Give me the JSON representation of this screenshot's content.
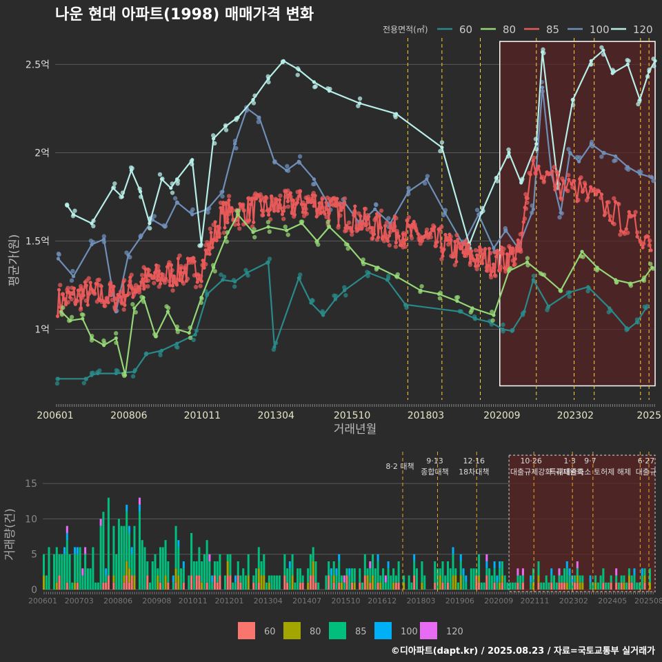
{
  "title": "나운 현대 아파트(1998) 매매가격 변화",
  "footer": "©디아파트(dapt.kr) / 2025.08.23 / 자료=국토교통부 실거래가",
  "colors": {
    "background": "#2b2b2b",
    "grid": "#5a5a5a",
    "s60_line": "#2a8a8a",
    "s80_line": "#95d676",
    "s85_line": "#e85a5a",
    "s100_line": "#6f8fb8",
    "s120_line": "#b8eee8",
    "b60": "#f8766d",
    "b80": "#a3a500",
    "b85": "#00bf7d",
    "b100": "#00b0f6",
    "b120": "#e76bf3",
    "policy_line": "#ffd23a",
    "policy_line_bottom": "#f5a623",
    "highlight_fill": "#5a2424",
    "highlight_border": "#ffffff"
  },
  "chart_data": [
    {
      "id": "price",
      "type": "line",
      "ylabel": "평균가(원)",
      "xlabel": "거래년월",
      "legend_title": "전용면적(㎡)",
      "legend_position": "top-right",
      "legend": [
        "60",
        "80",
        "85",
        "100",
        "120"
      ],
      "yticks": [
        {
          "v": 1.0,
          "label": "1억"
        },
        {
          "v": 1.5,
          "label": "1.5억"
        },
        {
          "v": 2.0,
          "label": "2억"
        },
        {
          "v": 2.5,
          "label": "2.5억"
        }
      ],
      "ylim": [
        0.6,
        2.65
      ],
      "xlim": [
        2006.0,
        2025.7
      ],
      "xticks": [
        {
          "v": 2006.0,
          "label": "200601"
        },
        {
          "v": 2008.42,
          "label": "200806"
        },
        {
          "v": 2010.83,
          "label": "201011"
        },
        {
          "v": 2013.25,
          "label": "201304"
        },
        {
          "v": 2015.75,
          "label": "201510"
        },
        {
          "v": 2018.17,
          "label": "201803"
        },
        {
          "v": 2020.67,
          "label": "202009"
        },
        {
          "v": 2023.08,
          "label": "202302"
        },
        {
          "v": 2025.5,
          "label": "2025"
        }
      ],
      "policy_lines": [
        2017.58,
        2018.7,
        2019.96,
        2021.8,
        2023.04,
        2023.7,
        2025.22,
        2025.5
      ],
      "highlight": {
        "x0": 2020.6,
        "x1": 2025.7,
        "y0": 0.68,
        "y1": 2.63
      },
      "series": [
        {
          "name": "60",
          "x": [
            2006.1,
            2007.0,
            2007.2,
            2007.4,
            2008.0,
            2008.6,
            2009.0,
            2009.5,
            2010.0,
            2010.6,
            2011.0,
            2011.5,
            2011.9,
            2012.3,
            2013.0,
            2013.2,
            2014.0,
            2014.4,
            2014.8,
            2015.2,
            2015.5,
            2016.3,
            2016.9,
            2017.5,
            2019.3,
            2019.8,
            2020.3,
            2020.7,
            2021.0,
            2021.4,
            2021.7,
            2022.2,
            2022.9,
            2023.5,
            2024.2,
            2024.8,
            2025.1,
            2025.4
          ],
          "y": [
            0.72,
            0.72,
            0.74,
            0.75,
            0.75,
            0.76,
            0.86,
            0.88,
            0.92,
            0.97,
            1.2,
            1.28,
            1.27,
            1.32,
            1.38,
            0.9,
            1.29,
            1.15,
            1.08,
            1.17,
            1.22,
            1.32,
            1.28,
            1.14,
            1.1,
            1.06,
            1.04,
            1.0,
            0.99,
            1.1,
            1.28,
            1.13,
            1.21,
            1.24,
            1.12,
            1.0,
            1.04,
            1.12
          ]
        },
        {
          "name": "80",
          "x": [
            2006.2,
            2006.5,
            2006.9,
            2007.2,
            2007.6,
            2008.0,
            2008.3,
            2008.6,
            2008.9,
            2009.3,
            2009.7,
            2010.0,
            2010.4,
            2010.8,
            2011.2,
            2011.6,
            2012.0,
            2012.5,
            2013.0,
            2013.6,
            2014.1,
            2014.6,
            2015.0,
            2015.6,
            2016.1,
            2016.6,
            2017.2,
            2018.0,
            2018.6,
            2019.2,
            2019.7,
            2020.4,
            2020.9,
            2021.5,
            2022.0,
            2022.6,
            2023.3,
            2023.8,
            2024.4,
            2024.9,
            2025.3,
            2025.6
          ],
          "y": [
            1.1,
            1.05,
            1.06,
            0.95,
            0.91,
            0.95,
            0.74,
            1.12,
            1.18,
            0.96,
            1.1,
            1.0,
            0.98,
            1.18,
            1.35,
            1.52,
            1.65,
            1.55,
            1.58,
            1.56,
            1.6,
            1.5,
            1.58,
            1.48,
            1.38,
            1.35,
            1.3,
            1.22,
            1.2,
            1.16,
            1.12,
            1.08,
            1.33,
            1.38,
            1.31,
            1.22,
            1.44,
            1.35,
            1.28,
            1.26,
            1.28,
            1.35
          ]
        },
        {
          "name": "85",
          "x": [],
          "y": []
        },
        {
          "name": "100",
          "x": [
            2006.1,
            2006.6,
            2007.2,
            2007.6,
            2008.0,
            2008.4,
            2008.8,
            2009.2,
            2009.6,
            2010.0,
            2010.5,
            2011.0,
            2011.5,
            2011.9,
            2012.3,
            2012.7,
            2013.2,
            2013.6,
            2014.0,
            2014.5,
            2015.0,
            2015.5,
            2016.0,
            2016.5,
            2017.0,
            2017.6,
            2018.2,
            2018.8,
            2019.4,
            2019.9,
            2020.4,
            2020.8,
            2021.2,
            2021.7,
            2022.0,
            2022.3,
            2022.6,
            2022.9,
            2023.2,
            2023.6,
            2024.0,
            2024.4,
            2024.8,
            2025.2,
            2025.6
          ],
          "y": [
            1.4,
            1.3,
            1.48,
            1.51,
            1.1,
            1.42,
            1.52,
            1.62,
            1.58,
            1.72,
            1.65,
            1.68,
            1.78,
            2.05,
            2.25,
            2.2,
            1.95,
            1.9,
            1.95,
            1.85,
            1.7,
            1.72,
            1.6,
            1.68,
            1.6,
            1.78,
            1.85,
            1.66,
            1.48,
            1.65,
            1.46,
            1.56,
            1.46,
            1.68,
            2.37,
            1.88,
            1.66,
            2.0,
            1.95,
            2.05,
            2.0,
            1.98,
            1.92,
            1.88,
            1.86
          ]
        },
        {
          "name": "120",
          "x": [
            2006.4,
            2006.6,
            2007.2,
            2007.9,
            2008.2,
            2008.5,
            2008.8,
            2009.1,
            2009.5,
            2009.8,
            2010.0,
            2010.5,
            2010.8,
            2011.2,
            2011.6,
            2012.0,
            2012.5,
            2013.0,
            2013.5,
            2014.0,
            2014.5,
            2015.0,
            2016.0,
            2017.2,
            2018.7,
            2019.6,
            2020.0,
            2020.5,
            2020.9,
            2021.3,
            2021.8,
            2022.0,
            2022.5,
            2023.0,
            2023.6,
            2024.0,
            2024.3,
            2024.8,
            2025.2,
            2025.5,
            2025.7
          ],
          "y": [
            1.7,
            1.65,
            1.6,
            1.8,
            1.75,
            1.9,
            1.78,
            1.6,
            1.85,
            1.8,
            1.85,
            1.96,
            1.48,
            2.08,
            2.15,
            2.2,
            2.3,
            2.42,
            2.52,
            2.47,
            2.4,
            2.35,
            2.28,
            2.22,
            2.03,
            1.48,
            1.66,
            1.86,
            2.0,
            1.83,
            2.05,
            2.57,
            1.83,
            2.3,
            2.52,
            2.58,
            2.45,
            2.5,
            2.3,
            2.46,
            2.52
          ]
        }
      ]
    },
    {
      "id": "volume",
      "type": "bar",
      "stacked": true,
      "ylabel": "거래량(건)",
      "legend": [
        "60",
        "80",
        "85",
        "100",
        "120"
      ],
      "legend_position": "bottom",
      "ylim": [
        0,
        19.5
      ],
      "yticks": [
        0,
        5,
        10,
        15
      ],
      "xlim": [
        2006.0,
        2025.7
      ],
      "xticks": [
        {
          "v": 2006.0,
          "label": "200601"
        },
        {
          "v": 2007.17,
          "label": "200703"
        },
        {
          "v": 2008.42,
          "label": "200806"
        },
        {
          "v": 2009.67,
          "label": "200908"
        },
        {
          "v": 2010.83,
          "label": "201011"
        },
        {
          "v": 2012.0,
          "label": "201201"
        },
        {
          "v": 2013.25,
          "label": "201304"
        },
        {
          "v": 2014.5,
          "label": "201407"
        },
        {
          "v": 2015.75,
          "label": "201510"
        },
        {
          "v": 2016.92,
          "label": "201612"
        },
        {
          "v": 2018.17,
          "label": "201803"
        },
        {
          "v": 2019.42,
          "label": "201906"
        },
        {
          "v": 2020.67,
          "label": "202009"
        },
        {
          "v": 2021.83,
          "label": "202111"
        },
        {
          "v": 2023.08,
          "label": "202302"
        },
        {
          "v": 2024.33,
          "label": "202405"
        },
        {
          "v": 2025.5,
          "label": "202508"
        }
      ],
      "policy_lines": [
        2017.58,
        2018.7,
        2019.96,
        2021.8,
        2023.04,
        2023.7,
        2025.22,
        2025.5
      ],
      "highlight": {
        "x0": 2020.6,
        "x1": 2025.7,
        "y0": 0,
        "y1": 19.0
      },
      "annotations": [
        {
          "x": 2017.58,
          "lines": [
            "8·2 대책"
          ]
        },
        {
          "x": 2018.7,
          "lines": [
            "9·13",
            "종합대책"
          ]
        },
        {
          "x": 2019.96,
          "lines": [
            "12·16",
            "18차대책"
          ]
        },
        {
          "x": 2021.8,
          "lines": [
            "10·26",
            "대출규제강화"
          ]
        },
        {
          "x": 2023.04,
          "lines": [
            "1·3",
            "규제완화"
          ]
        },
        {
          "x": 2023.7,
          "lines": [
            "9·7",
            "특례대출축소 토허제 해제"
          ]
        },
        {
          "x": 2025.5,
          "lines": [
            "6·27",
            "대출규"
          ]
        }
      ]
    }
  ]
}
